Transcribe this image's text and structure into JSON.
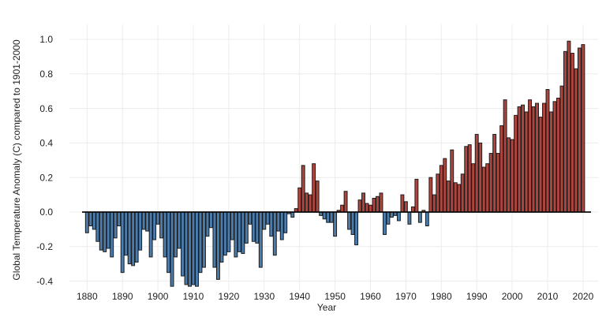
{
  "figure": {
    "background_color": "#ffffff"
  },
  "chart_data": {
    "type": "bar",
    "title": "",
    "xlabel": "Year",
    "ylabel": "Global Temperature Anomaly (C) compared to 1901-2000",
    "year_start": 1880,
    "year_end": 2020,
    "values_by_year": [
      -0.12,
      -0.08,
      -0.1,
      -0.17,
      -0.22,
      -0.23,
      -0.21,
      -0.26,
      -0.15,
      -0.08,
      -0.35,
      -0.25,
      -0.3,
      -0.31,
      -0.29,
      -0.22,
      -0.1,
      -0.11,
      -0.26,
      -0.16,
      -0.07,
      -0.15,
      -0.26,
      -0.35,
      -0.43,
      -0.26,
      -0.21,
      -0.37,
      -0.42,
      -0.43,
      -0.42,
      -0.43,
      -0.35,
      -0.32,
      -0.14,
      -0.09,
      -0.32,
      -0.39,
      -0.29,
      -0.25,
      -0.23,
      -0.16,
      -0.26,
      -0.23,
      -0.24,
      -0.18,
      -0.07,
      -0.17,
      -0.18,
      -0.32,
      -0.1,
      -0.07,
      -0.14,
      -0.25,
      -0.11,
      -0.16,
      -0.12,
      -0.01,
      -0.03,
      0.02,
      0.14,
      0.27,
      0.11,
      0.1,
      0.28,
      0.18,
      -0.02,
      -0.04,
      -0.06,
      -0.06,
      -0.14,
      0.01,
      0.04,
      0.12,
      -0.1,
      -0.13,
      -0.19,
      0.07,
      0.11,
      0.05,
      0.04,
      0.08,
      0.09,
      0.11,
      -0.13,
      -0.07,
      -0.03,
      -0.02,
      -0.05,
      0.1,
      0.06,
      -0.07,
      0.03,
      0.19,
      -0.06,
      0.01,
      -0.08,
      0.2,
      0.1,
      0.22,
      0.27,
      0.31,
      0.18,
      0.36,
      0.17,
      0.16,
      0.22,
      0.38,
      0.39,
      0.28,
      0.45,
      0.4,
      0.26,
      0.28,
      0.34,
      0.45,
      0.34,
      0.5,
      0.65,
      0.43,
      0.42,
      0.56,
      0.61,
      0.62,
      0.58,
      0.65,
      0.61,
      0.63,
      0.55,
      0.63,
      0.71,
      0.58,
      0.64,
      0.66,
      0.73,
      0.93,
      0.99,
      0.92,
      0.83,
      0.95,
      0.97
    ],
    "xticks": [
      1880,
      1890,
      1900,
      1910,
      1920,
      1930,
      1940,
      1950,
      1960,
      1970,
      1980,
      1990,
      2000,
      2010,
      2020
    ],
    "yticks": [
      1.0,
      0.8,
      0.6,
      0.4,
      0.2,
      0.0,
      -0.2,
      -0.4
    ],
    "ylim": [
      -0.47,
      1.05
    ],
    "grid": true,
    "legend": null,
    "colors": {
      "positive_bar": "#b0453e",
      "negative_bar": "#4a7cad",
      "bar_outline": "#1c1c1c",
      "zero_line": "#0a0a0a",
      "gridline": "#ececec",
      "text": "#1f1f1f"
    }
  }
}
